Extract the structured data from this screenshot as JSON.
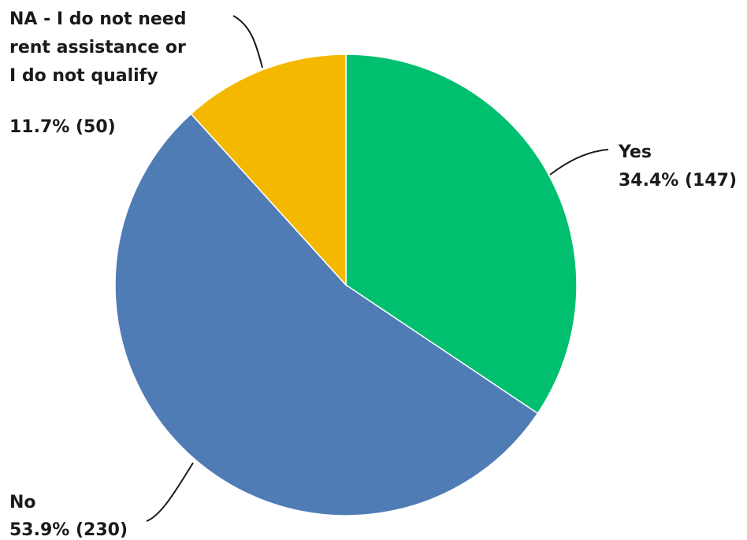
{
  "chart_data": {
    "type": "pie",
    "slices": [
      {
        "key": "yes",
        "label": "Yes",
        "percent": 34.4,
        "percent_text": "34.4%",
        "count": 147,
        "value_text": "34.4% (147)",
        "color": "#00bf6f"
      },
      {
        "key": "no",
        "label": "No",
        "percent": 53.9,
        "percent_text": "53.9%",
        "count": 230,
        "value_text": "53.9% (230)",
        "color": "#507cb6"
      },
      {
        "key": "na",
        "label": "NA - I do not need rent assistance or I do not qualify",
        "label_lines": [
          "NA - I do not need",
          "rent assistance or",
          "I do not qualify"
        ],
        "percent": 11.7,
        "percent_text": "11.7%",
        "count": 50,
        "value_text": "11.7% (50)",
        "color": "#f5b800"
      }
    ],
    "start": "top",
    "direction": "clockwise",
    "legend": "none"
  }
}
